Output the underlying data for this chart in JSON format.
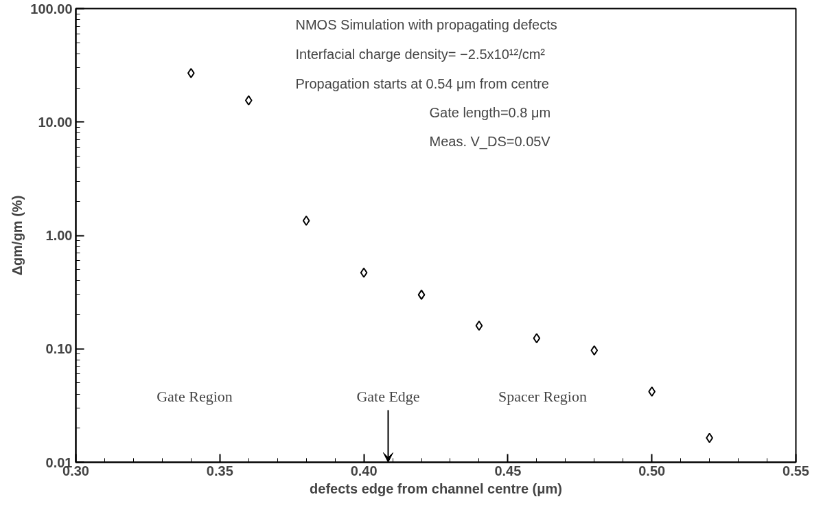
{
  "chart_data": {
    "type": "scatter",
    "xlabel": "defects edge from channel centre (μm)",
    "ylabel": "Δgm/gm (%)",
    "x": [
      0.34,
      0.36,
      0.38,
      0.4,
      0.42,
      0.44,
      0.46,
      0.48,
      0.5,
      0.52
    ],
    "values": [
      27,
      15.5,
      1.35,
      0.47,
      0.3,
      0.16,
      0.124,
      0.097,
      0.042,
      0.0164
    ],
    "color": "#000000",
    "marker": "diamond",
    "log": "y",
    "grid": false,
    "xlim": [
      0.3,
      0.55
    ],
    "xticks": [
      {
        "value": 0.3,
        "label": "0.30"
      },
      {
        "value": 0.35,
        "label": "0.35"
      },
      {
        "value": 0.4,
        "label": "0.40"
      },
      {
        "value": 0.45,
        "label": "0.45"
      },
      {
        "value": 0.5,
        "label": "0.50"
      },
      {
        "value": 0.55,
        "label": "0.55"
      }
    ],
    "ylim": [
      0.01,
      100
    ],
    "yticks": [
      {
        "value": 0.01,
        "label": "0.01"
      },
      {
        "value": 0.1,
        "label": "0.10"
      },
      {
        "value": 1,
        "label": "1.00"
      },
      {
        "value": 10,
        "label": "10.00"
      },
      {
        "value": 100,
        "label": "100.00"
      }
    ],
    "annotations": [
      "NMOS Simulation with propagating defects",
      "Interfacial charge density= −2.5x10¹²/cm²",
      "Propagation starts at 0.54 μm from centre",
      "Gate length=0.8 μm",
      "Meas. V_DS=0.05V",
      "Gate Region",
      "Gate Edge",
      "Spacer Region"
    ]
  }
}
